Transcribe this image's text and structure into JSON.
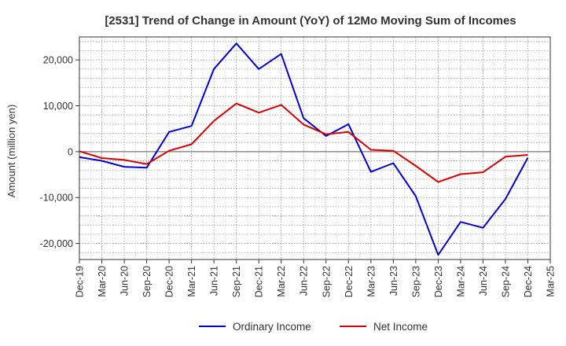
{
  "chart_data": {
    "type": "line",
    "title": "[2531]  Trend of Change in Amount (YoY) of 12Mo Moving Sum of Incomes",
    "xlabel": "",
    "ylabel": "Amount (million yen)",
    "ylim": [
      -23500,
      25000
    ],
    "yticks": [
      20000,
      10000,
      0,
      -10000,
      -20000
    ],
    "ytick_labels": [
      "20,000",
      "10,000",
      "0",
      "-10,000",
      "-20,000"
    ],
    "x": [
      "Dec-19",
      "Mar-20",
      "Jun-20",
      "Sep-20",
      "Dec-20",
      "Mar-21",
      "Jun-21",
      "Sep-21",
      "Dec-21",
      "Mar-22",
      "Jun-22",
      "Sep-22",
      "Dec-22",
      "Mar-23",
      "Jun-23",
      "Sep-23",
      "Dec-23",
      "Mar-24",
      "Jun-24",
      "Sep-24",
      "Dec-24",
      "Mar-25"
    ],
    "grid": true,
    "legend_position": "bottom",
    "series": [
      {
        "name": "Ordinary Income",
        "color": "#0000dd",
        "values": [
          -1200,
          -2000,
          -3300,
          -3500,
          4300,
          5600,
          18000,
          23600,
          18000,
          21300,
          7300,
          3400,
          6000,
          -4400,
          -2500,
          -9700,
          -22500,
          -15300,
          -16600,
          -10300,
          -1300,
          null
        ]
      },
      {
        "name": "Net Income",
        "color": "#dd0000",
        "values": [
          100,
          -1400,
          -1800,
          -2700,
          200,
          1600,
          6700,
          10500,
          8500,
          10200,
          5900,
          3800,
          4300,
          400,
          200,
          -3100,
          -6600,
          -4900,
          -4500,
          -1100,
          -700,
          null
        ]
      }
    ]
  }
}
